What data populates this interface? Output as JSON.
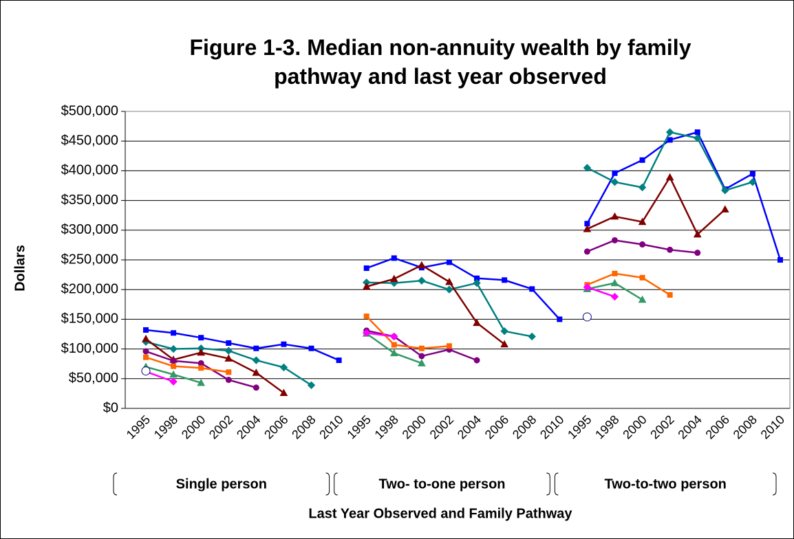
{
  "chart_data": {
    "type": "line",
    "title": "Figure 1-3. Median non-annuity wealth by family pathway and last year observed",
    "y_label": "Dollars",
    "x_label": "Last Year Observed and Family Pathway",
    "ylim": [
      0,
      500000
    ],
    "yticks": [
      {
        "value": 0,
        "label": "$0"
      },
      {
        "value": 50000,
        "label": "$50,000"
      },
      {
        "value": 100000,
        "label": "$100,000"
      },
      {
        "value": 150000,
        "label": "$150,000"
      },
      {
        "value": 200000,
        "label": "$200,000"
      },
      {
        "value": 250000,
        "label": "$250,000"
      },
      {
        "value": 300000,
        "label": "$300,000"
      },
      {
        "value": 350000,
        "label": "$350,000"
      },
      {
        "value": 400000,
        "label": "$400,000"
      },
      {
        "value": 450000,
        "label": "$450,000"
      },
      {
        "value": 500000,
        "label": "$500,000"
      }
    ],
    "grid": true,
    "groups": [
      {
        "label": "Single person",
        "categories": [
          "1995",
          "1998",
          "2000",
          "2002",
          "2004",
          "2006",
          "2008",
          "2010"
        ],
        "series": [
          {
            "color": "#0000ff",
            "marker": "square",
            "values": [
              132000,
              127000,
              119000,
              110000,
              101000,
              108000,
              101000,
              81000
            ]
          },
          {
            "color": "#008080",
            "marker": "diamond",
            "values": [
              112000,
              100000,
              101000,
              97000,
              81000,
              69000,
              39000,
              null
            ]
          },
          {
            "color": "#800000",
            "marker": "triangle",
            "values": [
              117000,
              82000,
              94000,
              84000,
              60000,
              26000,
              null,
              null
            ]
          },
          {
            "color": "#800080",
            "marker": "circle",
            "values": [
              96000,
              80000,
              76000,
              48000,
              35000,
              null,
              null,
              null
            ]
          },
          {
            "color": "#ff6600",
            "marker": "square",
            "values": [
              86000,
              71000,
              68000,
              61000,
              null,
              null,
              null,
              null
            ]
          },
          {
            "color": "#339966",
            "marker": "triangle",
            "values": [
              70000,
              57000,
              43000,
              null,
              null,
              null,
              null,
              null
            ]
          },
          {
            "color": "#ff00ff",
            "marker": "diamond",
            "values": [
              62000,
              45000,
              null,
              null,
              null,
              null,
              null,
              null
            ]
          },
          {
            "color": "#000080",
            "marker": "open-circle",
            "values": [
              63000,
              null,
              null,
              null,
              null,
              null,
              null,
              null
            ]
          }
        ]
      },
      {
        "label": "Two- to-one person",
        "categories": [
          "1995",
          "1998",
          "2000",
          "2002",
          "2004",
          "2006",
          "2008",
          "2010"
        ],
        "series": [
          {
            "color": "#0000ff",
            "marker": "square",
            "values": [
              236000,
              253000,
              237000,
              246000,
              219000,
              216000,
              201000,
              150000
            ]
          },
          {
            "color": "#008080",
            "marker": "diamond",
            "values": [
              212000,
              211000,
              215000,
              200000,
              211000,
              130000,
              121000,
              null
            ]
          },
          {
            "color": "#800000",
            "marker": "triangle",
            "values": [
              205000,
              218000,
              241000,
              213000,
              144000,
              108000,
              null,
              null
            ]
          },
          {
            "color": "#800080",
            "marker": "circle",
            "values": [
              131000,
              121000,
              88000,
              99000,
              81000,
              null,
              null,
              null
            ]
          },
          {
            "color": "#ff6600",
            "marker": "square",
            "values": [
              155000,
              107000,
              101000,
              105000,
              null,
              null,
              null,
              null
            ]
          },
          {
            "color": "#339966",
            "marker": "triangle",
            "values": [
              126000,
              93000,
              76000,
              null,
              null,
              null,
              null,
              null
            ]
          },
          {
            "color": "#ff00ff",
            "marker": "diamond",
            "values": [
              127000,
              121000,
              null,
              null,
              null,
              null,
              null,
              null
            ]
          }
        ]
      },
      {
        "label": "Two-to-two person",
        "categories": [
          "1995",
          "1998",
          "2000",
          "2002",
          "2004",
          "2006",
          "2008",
          "2010"
        ],
        "series": [
          {
            "color": "#0000ff",
            "marker": "square",
            "values": [
              311000,
              396000,
              418000,
              452000,
              465000,
              369000,
              395000,
              250000
            ]
          },
          {
            "color": "#008080",
            "marker": "diamond",
            "values": [
              405000,
              381000,
              372000,
              465000,
              455000,
              367000,
              381000,
              null
            ]
          },
          {
            "color": "#800000",
            "marker": "triangle",
            "values": [
              302000,
              323000,
              314000,
              389000,
              293000,
              335000,
              null,
              null
            ]
          },
          {
            "color": "#800080",
            "marker": "circle",
            "values": [
              264000,
              283000,
              276000,
              267000,
              262000,
              null,
              null,
              null
            ]
          },
          {
            "color": "#ff6600",
            "marker": "square",
            "values": [
              208000,
              227000,
              220000,
              191000,
              null,
              null,
              null,
              null
            ]
          },
          {
            "color": "#339966",
            "marker": "triangle",
            "values": [
              201000,
              211000,
              183000,
              null,
              null,
              null,
              null,
              null
            ]
          },
          {
            "color": "#ff00ff",
            "marker": "diamond",
            "values": [
              204000,
              188000,
              null,
              null,
              null,
              null,
              null,
              null
            ]
          },
          {
            "color": "#000080",
            "marker": "open-circle",
            "values": [
              154000,
              null,
              null,
              null,
              null,
              null,
              null,
              null
            ]
          }
        ]
      }
    ]
  }
}
